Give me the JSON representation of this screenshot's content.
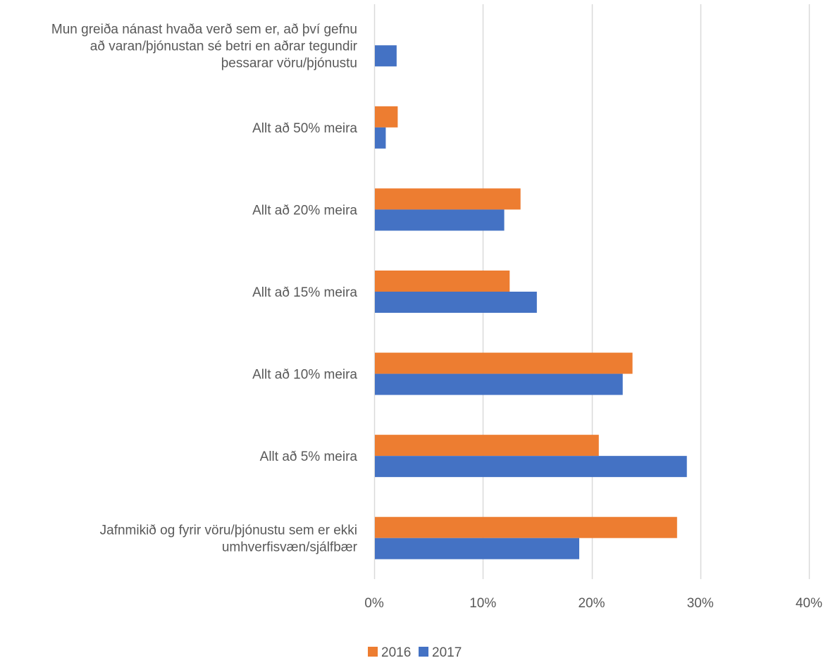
{
  "chart_data": {
    "type": "bar",
    "orientation": "horizontal",
    "title": "",
    "xlabel": "",
    "ylabel": "",
    "xlim": [
      0,
      40
    ],
    "x_ticks": [
      0,
      10,
      20,
      30,
      40
    ],
    "tick_labels": [
      "0%",
      "10%",
      "20%",
      "30%",
      "40%"
    ],
    "grid": "vertical",
    "legend": "bottom",
    "categories": [
      [
        "Mun greiða nánast hvaða verð sem er, að því gefnu",
        "að varan/þjónustan sé betri en aðrar tegundir",
        "þessarar vöru/þjónustu"
      ],
      [
        "Allt að 50% meira"
      ],
      [
        "Allt að 20% meira"
      ],
      [
        "Allt að 15% meira"
      ],
      [
        "Allt að 10% meira"
      ],
      [
        "Allt að 5% meira"
      ],
      [
        "Jafnmikið og fyrir vöru/þjónustu sem er ekki",
        "umhverfisvæn/sjálfbær"
      ]
    ],
    "series": [
      {
        "name": "2016",
        "color": "#ED7D31",
        "values": [
          0,
          2.1,
          13.4,
          12.4,
          23.7,
          20.6,
          27.8
        ]
      },
      {
        "name": "2017",
        "color": "#4472C4",
        "values": [
          2.0,
          1.0,
          11.9,
          14.9,
          22.8,
          28.7,
          18.8
        ]
      }
    ]
  }
}
